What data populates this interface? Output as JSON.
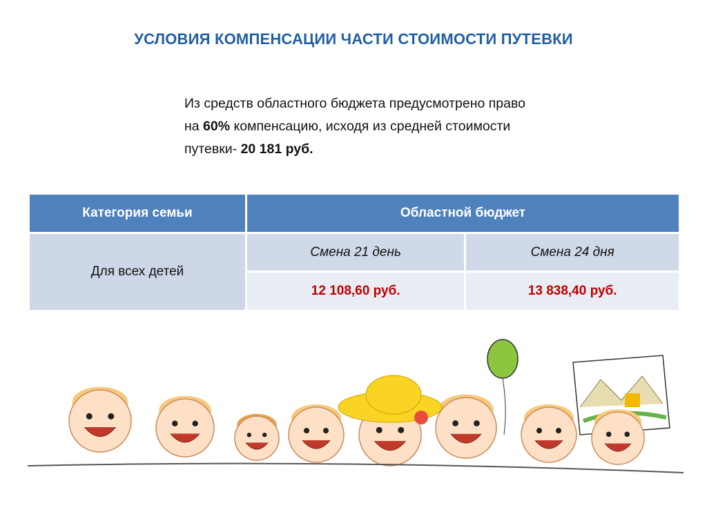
{
  "title": "УСЛОВИЯ КОМПЕНСАЦИИ ЧАСТИ СТОИМОСТИ ПУТЕВКИ",
  "intro": {
    "line1": "Из средств областного бюджета предусмотрено право",
    "line2_pre": "на ",
    "line2_bold": "60%",
    "line2_post": " компенсацию, исходя из средней стоимости",
    "line3_pre": "путевки- ",
    "line3_bold": "20 181 руб."
  },
  "table": {
    "headers": [
      "Категория семьи",
      "Областной бюджет"
    ],
    "category": "Для всех детей",
    "shifts": [
      "Смена 21 день",
      "Смена 24 дня"
    ],
    "amounts": [
      "12 108,60 руб.",
      "13 838,40 руб."
    ]
  },
  "colors": {
    "title": "#1f5fa8",
    "header": "#4f81bd",
    "amount": "#c00000"
  },
  "illustration": "cartoon-children-peeking-over-line"
}
